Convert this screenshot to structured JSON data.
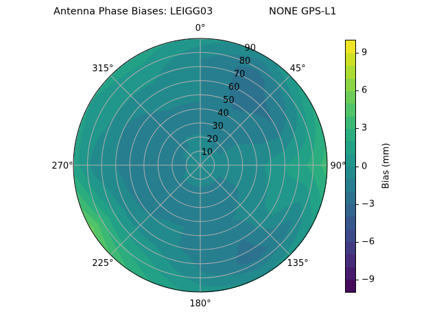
{
  "chart_data": {
    "type": "heatmap",
    "subtype": "polar-contour",
    "title": "Antenna Phase Biases: LEIGG03",
    "title_right": "NONE GPS-L1",
    "colorbar_label": "Bias (mm)",
    "colormap": "viridis",
    "levels_range": [
      -10,
      10
    ],
    "level_step": 1,
    "colorbar_ticks": [
      "9",
      "6",
      "3",
      "0",
      "−3",
      "−6",
      "−9"
    ],
    "colorbar_tick_values": [
      9,
      6,
      3,
      0,
      -3,
      -6,
      -9
    ],
    "angular_ticks": [
      "0°",
      "45°",
      "90°",
      "135°",
      "180°",
      "225°",
      "270°",
      "315°"
    ],
    "radial_ticks": [
      "10",
      "20",
      "30",
      "40",
      "50",
      "60",
      "70",
      "80",
      "90"
    ],
    "radial_range": [
      0,
      90
    ],
    "azimuth_direction": "clockwise, 0 at top",
    "grid": true,
    "azimuths": [
      0,
      30,
      60,
      90,
      120,
      150,
      180,
      210,
      240,
      270,
      300,
      330
    ],
    "zeniths": [
      0,
      15,
      30,
      45,
      60,
      75,
      90
    ],
    "values": [
      [
        -0.5,
        -0.5,
        -1.5,
        -1,
        -1,
        -1,
        0.5
      ],
      [
        -0.5,
        -1,
        -1.5,
        -2,
        -2.5,
        -2.5,
        -0.5
      ],
      [
        -0.5,
        -1,
        -1,
        -1.5,
        -2,
        -0.5,
        2
      ],
      [
        -0.5,
        -0.5,
        0,
        0,
        1,
        2,
        3.5
      ],
      [
        -0.5,
        -1,
        -1,
        -0.5,
        0.5,
        -1,
        1
      ],
      [
        -0.5,
        -1,
        -1.5,
        -1,
        -2,
        -2.5,
        0
      ],
      [
        -0.5,
        -1,
        -1.5,
        -1,
        -1.5,
        -1,
        0.5
      ],
      [
        -0.5,
        -1,
        -1,
        -1,
        -0.5,
        1,
        2.5
      ],
      [
        -0.5,
        -1,
        -1.5,
        -1.5,
        -0.5,
        2,
        5.5
      ],
      [
        -0.5,
        -1.5,
        -2,
        -1.5,
        -1,
        -0.5,
        1.5
      ],
      [
        -0.5,
        -1,
        -1.5,
        -1.5,
        -1,
        0.5,
        1
      ],
      [
        -0.5,
        -1,
        -1,
        -1,
        -0.5,
        0.5,
        1.5
      ]
    ]
  }
}
